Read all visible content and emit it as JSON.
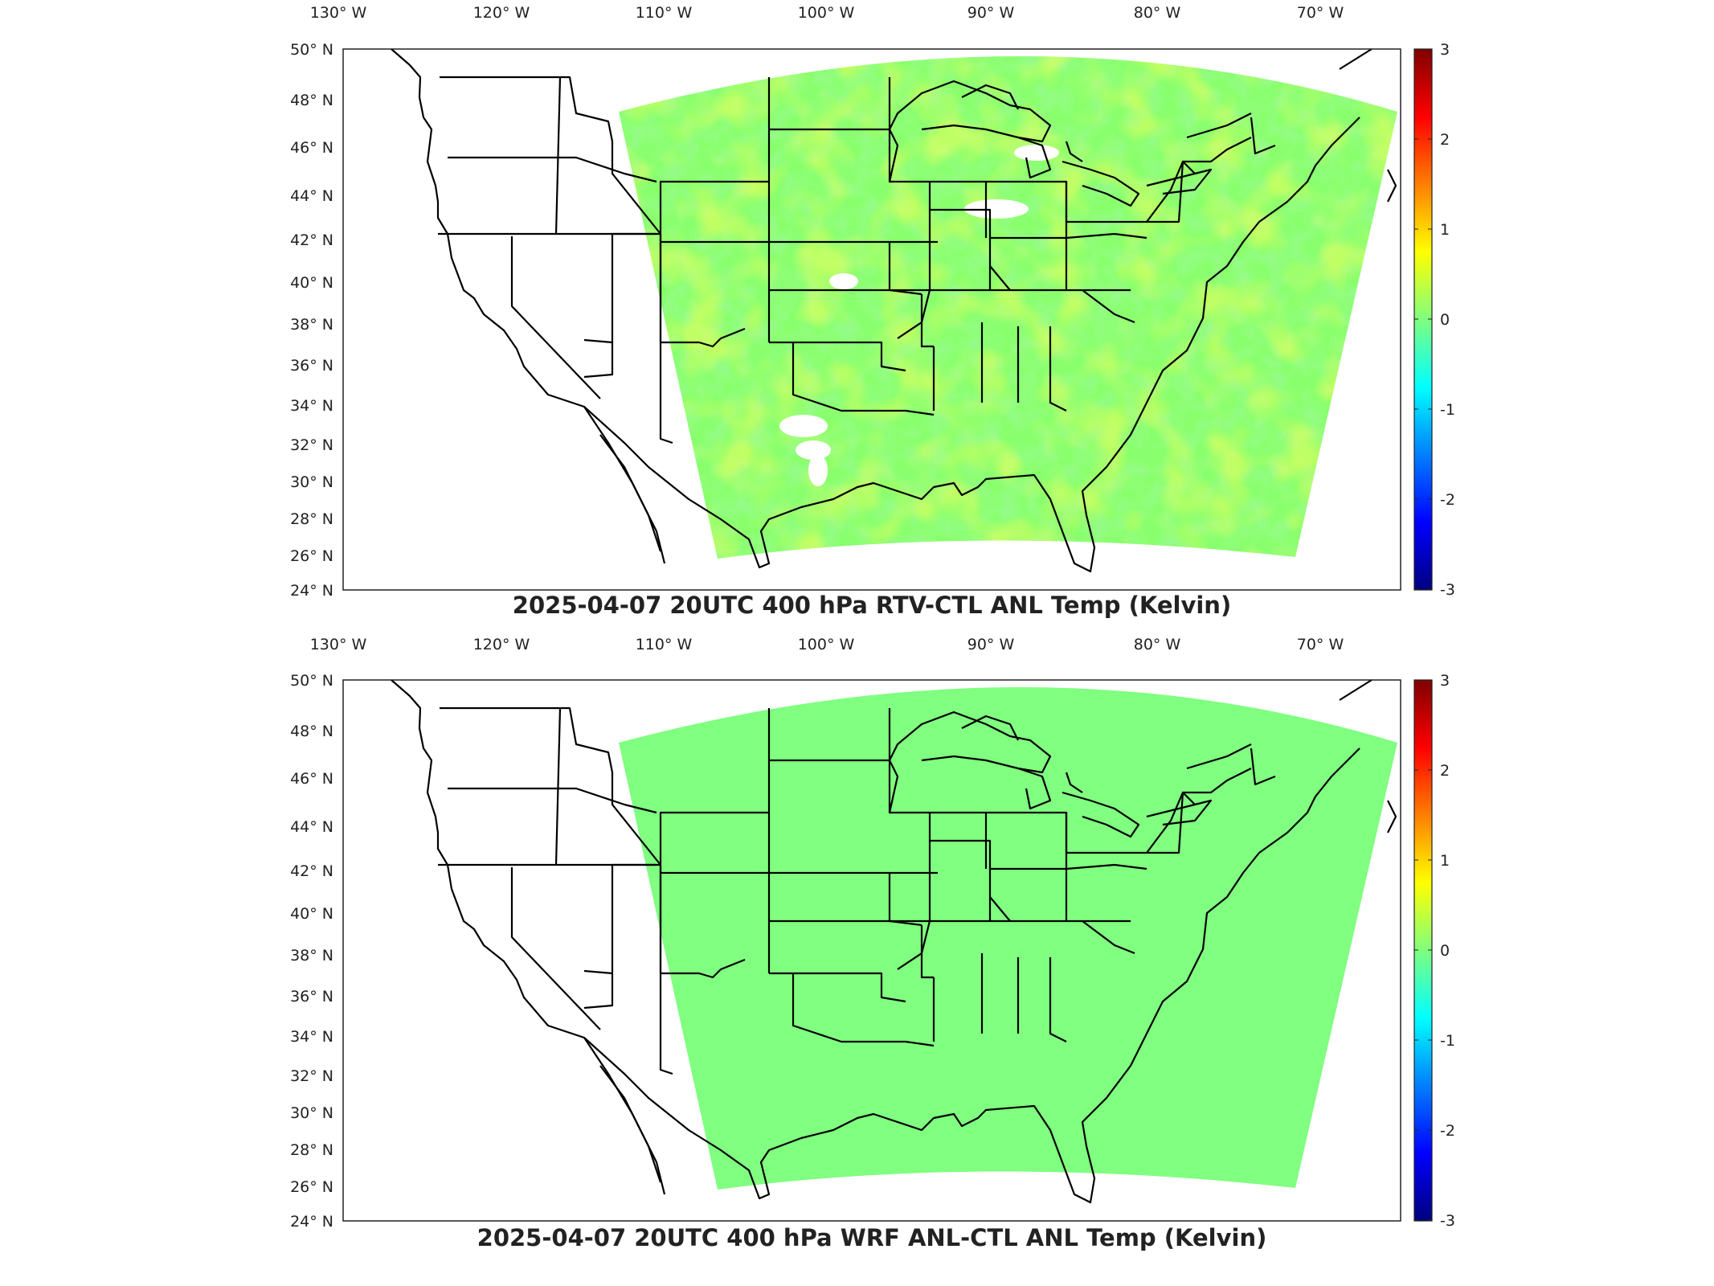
{
  "colormap": {
    "name": "jet",
    "stops": [
      "#00007f",
      "#0000ff",
      "#007fff",
      "#00ffff",
      "#7fff7f",
      "#ffff00",
      "#ff7f00",
      "#ff0000",
      "#7f0000"
    ]
  },
  "panels": [
    {
      "id": "top",
      "title": "2025-04-07 20UTC 400 hPa RTV-CTL ANL Temp (Kelvin)",
      "lon_labels": [
        "130° W",
        "120° W",
        "110° W",
        "100° W",
        "90° W",
        "80° W",
        "70° W"
      ],
      "lat_labels": [
        "50° N",
        "48° N",
        "46° N",
        "44° N",
        "42° N",
        "40° N",
        "38° N",
        "36° N",
        "34° N",
        "32° N",
        "30° N",
        "28° N",
        "26° N",
        "24° N"
      ],
      "colorbar": {
        "min": -3,
        "max": 3,
        "ticks": [
          "3",
          "2",
          "1",
          "0",
          "-1",
          "-2",
          "-3"
        ]
      },
      "field": {
        "description_value": "noisy field mostly between -0.5 and 1 K",
        "dominant": [
          "#7fff7f",
          "#b6ff48",
          "#5affa4",
          "#e6ff18"
        ]
      }
    },
    {
      "id": "bottom",
      "title": "2025-04-07 20UTC 400 hPa WRF ANL-CTL ANL Temp (Kelvin)",
      "lon_labels": [
        "130° W",
        "120° W",
        "110° W",
        "100° W",
        "90° W",
        "80° W",
        "70° W"
      ],
      "lat_labels": [
        "50° N",
        "48° N",
        "46° N",
        "44° N",
        "42° N",
        "40° N",
        "38° N",
        "36° N",
        "34° N",
        "32° N",
        "30° N",
        "28° N",
        "26° N",
        "24° N"
      ],
      "colorbar": {
        "min": -3,
        "max": 3,
        "ticks": [
          "3",
          "2",
          "1",
          "0",
          "-1",
          "-2",
          "-3"
        ]
      },
      "field": {
        "description_value": "uniform 0 K",
        "dominant": [
          "#80ff80"
        ]
      }
    }
  ]
}
